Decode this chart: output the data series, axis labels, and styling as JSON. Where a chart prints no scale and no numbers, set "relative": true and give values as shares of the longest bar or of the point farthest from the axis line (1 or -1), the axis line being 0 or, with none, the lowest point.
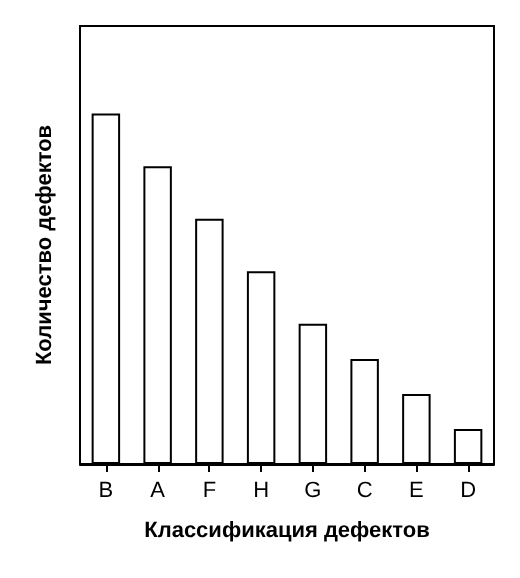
{
  "chart_data": {
    "type": "bar",
    "xlabel": "Классификация дефектов",
    "ylabel": "Количество дефектов",
    "categories": [
      "B",
      "A",
      "F",
      "H",
      "G",
      "C",
      "E",
      "D"
    ],
    "values": [
      1,
      0.85,
      0.7,
      0.55,
      0.4,
      0.3,
      0.2,
      0.1
    ],
    "relative": true,
    "color": "#ffffff",
    "grid": false
  }
}
